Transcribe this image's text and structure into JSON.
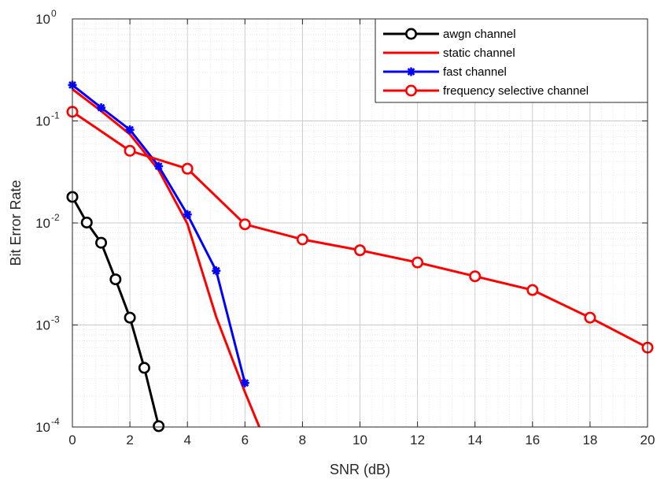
{
  "chart_data": {
    "type": "line",
    "xlabel": "SNR (dB)",
    "ylabel": "Bit Error Rate",
    "xlim": [
      0,
      20
    ],
    "ylim": [
      0.0001,
      1
    ],
    "yscale": "log",
    "grid": true,
    "minor_grid": true,
    "legend_position": "top-right",
    "x_ticks": [
      0,
      2,
      4,
      6,
      8,
      10,
      12,
      14,
      16,
      18,
      20
    ],
    "y_ticks": [
      {
        "value": 0.0001,
        "base": "10",
        "exp": "-4"
      },
      {
        "value": 0.001,
        "base": "10",
        "exp": "-3"
      },
      {
        "value": 0.01,
        "base": "10",
        "exp": "-2"
      },
      {
        "value": 0.1,
        "base": "10",
        "exp": "-1"
      },
      {
        "value": 1,
        "base": "10",
        "exp": "0"
      }
    ],
    "series": [
      {
        "name": "awgn channel",
        "color": "#000000",
        "marker": "circle",
        "x": [
          0,
          0.5,
          1,
          1.5,
          2,
          2.5,
          3
        ],
        "y": [
          0.018,
          0.0101,
          0.0064,
          0.0028,
          0.00118,
          0.00038,
          0.000102
        ]
      },
      {
        "name": "static channel",
        "color": "#ff0000",
        "marker": "none",
        "x": [
          0,
          1,
          2,
          3,
          4,
          5,
          6,
          6.5
        ],
        "y": [
          0.205,
          0.125,
          0.074,
          0.033,
          0.0098,
          0.0012,
          0.00022,
          0.0001
        ]
      },
      {
        "name": "fast channel",
        "color": "#0000ff",
        "marker": "asterisk",
        "x": [
          0,
          1,
          2,
          3,
          4,
          5,
          6
        ],
        "y": [
          0.225,
          0.135,
          0.082,
          0.036,
          0.0121,
          0.0034,
          0.00027
        ]
      },
      {
        "name": "frequency selective channel",
        "color": "#ff0000",
        "marker": "circle",
        "x": [
          0,
          2,
          4,
          6,
          8,
          10,
          12,
          14,
          16,
          18,
          20
        ],
        "y": [
          0.123,
          0.051,
          0.034,
          0.0097,
          0.0069,
          0.0054,
          0.0041,
          0.003,
          0.0022,
          0.00118,
          0.0006
        ]
      }
    ]
  }
}
